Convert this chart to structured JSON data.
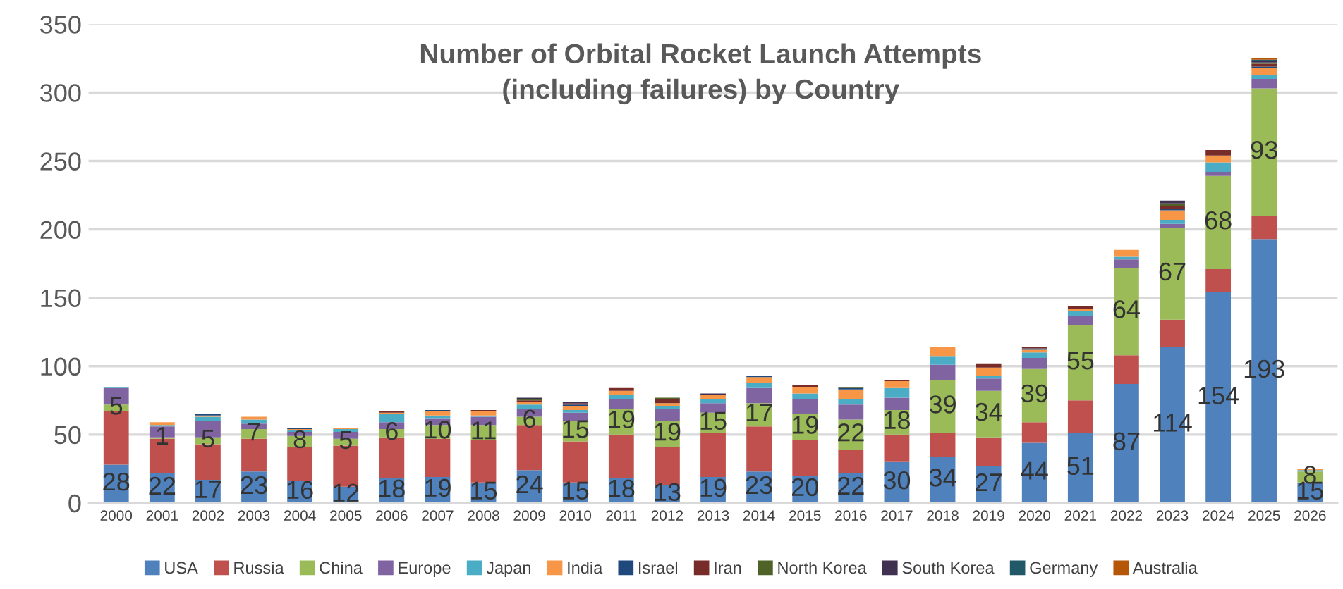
{
  "chart_data": {
    "type": "bar",
    "stacked": true,
    "title": "Number of Orbital Rocket Launch Attempts\n(including failures) by Country",
    "categories": [
      "2000",
      "2001",
      "2002",
      "2003",
      "2004",
      "2005",
      "2006",
      "2007",
      "2008",
      "2009",
      "2010",
      "2011",
      "2012",
      "2013",
      "2014",
      "2015",
      "2016",
      "2017",
      "2018",
      "2019",
      "2020",
      "2021",
      "2022",
      "2023",
      "2024",
      "2025",
      "2026"
    ],
    "series": [
      {
        "name": "USA",
        "color": "#4f81bd",
        "values": [
          28,
          22,
          17,
          23,
          16,
          12,
          18,
          19,
          15,
          24,
          15,
          18,
          13,
          19,
          23,
          20,
          22,
          30,
          34,
          27,
          44,
          51,
          87,
          114,
          154,
          193,
          15
        ],
        "value_labels": [
          "28",
          "22",
          "17",
          "23",
          "16",
          "12",
          "18",
          "19",
          "15",
          "24",
          "15",
          "18",
          "13",
          "19",
          "23",
          "20",
          "22",
          "30",
          "34",
          "27",
          "44",
          "51",
          "87",
          "114",
          "154",
          "193",
          "15"
        ]
      },
      {
        "name": "Russia",
        "color": "#c0504d",
        "values": [
          39,
          25,
          26,
          24,
          25,
          30,
          30,
          28,
          31,
          33,
          30,
          32,
          28,
          32,
          33,
          26,
          17,
          20,
          17,
          21,
          15,
          24,
          21,
          20,
          17,
          17,
          0
        ]
      },
      {
        "name": "China",
        "color": "#9bbb59",
        "values": [
          5,
          1,
          5,
          7,
          8,
          5,
          6,
          10,
          11,
          6,
          15,
          19,
          19,
          15,
          17,
          19,
          22,
          18,
          39,
          34,
          39,
          55,
          64,
          67,
          68,
          93,
          8
        ],
        "value_labels": [
          "5",
          "1",
          "5",
          "7",
          "8",
          "5",
          "6",
          "10",
          "11",
          "6",
          "15",
          "19",
          "19",
          "15",
          "17",
          "19",
          "22",
          "18",
          "39",
          "34",
          "39",
          "55",
          "64",
          "67",
          "68",
          "93",
          "8"
        ]
      },
      {
        "name": "Europe",
        "color": "#8064a2",
        "values": [
          12,
          8,
          12,
          4,
          3,
          5,
          5,
          5,
          6,
          6,
          6,
          7,
          9,
          7,
          11,
          11,
          11,
          9,
          11,
          9,
          8,
          7,
          6,
          3,
          3,
          7,
          0
        ]
      },
      {
        "name": "Japan",
        "color": "#4bacc6",
        "values": [
          1,
          1,
          3,
          3,
          1,
          2,
          6,
          2,
          1,
          3,
          2,
          3,
          2,
          3,
          4,
          4,
          4,
          7,
          6,
          2,
          4,
          3,
          2,
          3,
          7,
          3,
          1
        ]
      },
      {
        "name": "India",
        "color": "#f79646",
        "values": [
          0,
          2,
          1,
          2,
          1,
          1,
          1,
          3,
          3,
          2,
          3,
          3,
          2,
          3,
          4,
          5,
          7,
          5,
          7,
          6,
          2,
          2,
          5,
          7,
          5,
          5,
          1
        ]
      },
      {
        "name": "Israel",
        "color": "#1f497d",
        "values": [
          0,
          0,
          1,
          0,
          1,
          0,
          0,
          1,
          0,
          0,
          1,
          0,
          0,
          0,
          1,
          0,
          1,
          0,
          0,
          0,
          1,
          0,
          0,
          1,
          0,
          1,
          0
        ]
      },
      {
        "name": "Iran",
        "color": "#772c2a",
        "values": [
          0,
          0,
          0,
          0,
          0,
          0,
          1,
          0,
          1,
          1,
          1,
          2,
          3,
          0,
          0,
          1,
          0,
          1,
          0,
          3,
          1,
          2,
          0,
          2,
          4,
          2,
          0
        ]
      },
      {
        "name": "North Korea",
        "color": "#4f6228",
        "values": [
          0,
          0,
          0,
          0,
          0,
          0,
          0,
          0,
          0,
          1,
          0,
          0,
          1,
          0,
          0,
          0,
          1,
          0,
          0,
          0,
          0,
          0,
          0,
          2,
          0,
          1,
          0
        ]
      },
      {
        "name": "South Korea",
        "color": "#403151",
        "values": [
          0,
          0,
          0,
          0,
          0,
          0,
          0,
          0,
          0,
          1,
          1,
          0,
          0,
          1,
          0,
          0,
          0,
          0,
          0,
          0,
          0,
          0,
          0,
          2,
          0,
          1,
          0
        ]
      },
      {
        "name": "Germany",
        "color": "#215968",
        "values": [
          0,
          0,
          0,
          0,
          0,
          0,
          0,
          0,
          0,
          0,
          0,
          0,
          0,
          0,
          0,
          0,
          0,
          0,
          0,
          0,
          0,
          0,
          0,
          0,
          0,
          1,
          0
        ]
      },
      {
        "name": "Australia",
        "color": "#b65708",
        "values": [
          0,
          0,
          0,
          0,
          0,
          0,
          0,
          0,
          0,
          0,
          0,
          0,
          0,
          0,
          0,
          0,
          0,
          0,
          0,
          0,
          0,
          0,
          0,
          0,
          0,
          1,
          0
        ]
      }
    ],
    "ylim": [
      0,
      350
    ],
    "yticks": [
      0,
      50,
      100,
      150,
      200,
      250,
      300,
      350
    ],
    "grid": "y",
    "legend": "bottom"
  }
}
